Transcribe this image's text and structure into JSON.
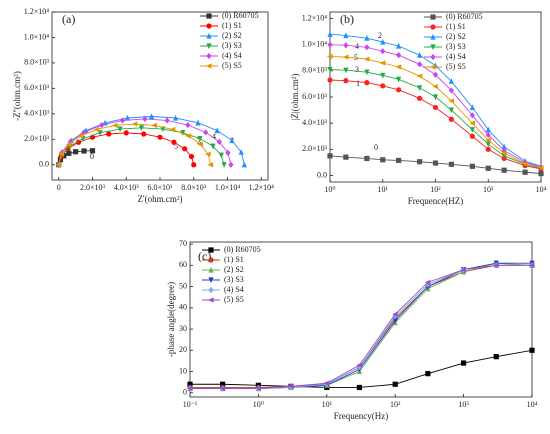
{
  "chart_data": [
    {
      "type": "line",
      "title": "(a)",
      "xlabel": "Z'(ohm.cm²)",
      "ylabel": "-Z''(ohm.cm²)",
      "xlim": [
        -400,
        12400
      ],
      "ylim": [
        -1200,
        12000
      ],
      "xticks": [
        0,
        {
          "value": 2000,
          "label": "2.0×10³"
        },
        {
          "value": 4000,
          "label": "4.0×10³"
        },
        {
          "value": 6000,
          "label": "6.0×10³"
        },
        {
          "value": 8000,
          "label": "8.0×10³"
        },
        {
          "value": 10000,
          "label": "1.0×10⁴"
        },
        {
          "value": 12000,
          "label": "1.2×10⁴"
        }
      ],
      "yticks": [
        {
          "value": 0,
          "label": "0.0"
        },
        {
          "value": 2000,
          "label": "2.0×10³"
        },
        {
          "value": 4000,
          "label": "4.0×10³"
        },
        {
          "value": 6000,
          "label": "6.0×10³"
        },
        {
          "value": 8000,
          "label": "8.0×10³"
        },
        {
          "value": 10000,
          "label": "1.0×10⁴"
        },
        {
          "value": 12000,
          "label": "1.2×10⁴"
        }
      ],
      "annotations": [
        "0",
        "5",
        "3",
        "4",
        "2"
      ],
      "series": [
        {
          "name": "(0) R60705",
          "color": "#333333",
          "marker": "square",
          "x": [
            0,
            100,
            300,
            600,
            1000,
            1500,
            2000
          ],
          "values": [
            0,
            400,
            700,
            900,
            1020,
            1080,
            1100
          ]
        },
        {
          "name": "(1) S1",
          "color": "#ff0000",
          "marker": "circle",
          "x": [
            0,
            136,
            536,
            1172,
            2000,
            2964,
            4000,
            5036,
            6000,
            6828,
            7464,
            7864,
            8000
          ],
          "values": [
            0,
            648,
            1250,
            1768,
            2165,
            2415,
            2500,
            2415,
            2165,
            1768,
            1250,
            648,
            0
          ]
        },
        {
          "name": "(2) S2",
          "color": "#1e90ff",
          "marker": "triangle-up",
          "x": [
            0,
            187,
            737,
            1612,
            2750,
            4076,
            5500,
            6924,
            8250,
            9389,
            10263,
            10813,
            11000
          ],
          "values": [
            0,
            984,
            1900,
            2687,
            3291,
            3671,
            3800,
            3671,
            3291,
            2687,
            1900,
            984,
            0
          ]
        },
        {
          "name": "(3) S3",
          "color": "#22aa44",
          "marker": "triangle-down",
          "x": [
            0,
            167,
            657,
            1436,
            2450,
            3631,
            4900,
            6169,
            7350,
            8364,
            9143,
            9633,
            9800
          ],
          "values": [
            0,
            751,
            1450,
            2050,
            2511,
            2801,
            2900,
            2801,
            2511,
            2050,
            1450,
            751,
            0
          ]
        },
        {
          "name": "(4) S4",
          "color": "#cc44ee",
          "marker": "diamond",
          "x": [
            0,
            173,
            683,
            1494,
            2550,
            3779,
            5100,
            6421,
            7650,
            8706,
            9517,
            10027,
            10200
          ],
          "values": [
            0,
            932,
            1800,
            2545,
            3118,
            3478,
            3600,
            3478,
            3118,
            2545,
            1800,
            932,
            0
          ]
        },
        {
          "name": "(5) S5",
          "color": "#e69500",
          "marker": "triangle-left",
          "x": [
            0,
            153,
            603,
            1319,
            2250,
            3335,
            4500,
            5665,
            6750,
            7682,
            8397,
            8847,
            9000
          ],
          "values": [
            0,
            829,
            1600,
            2262,
            2771,
            3091,
            3200,
            3091,
            2771,
            2262,
            1600,
            829,
            0
          ]
        }
      ]
    },
    {
      "type": "line",
      "title": "(b)",
      "xlabel": "Frequence(HZ)",
      "ylabel": "|Z|(ohm.cm²)",
      "xlog": true,
      "xlim": [
        1,
        10000
      ],
      "ylim": [
        -500,
        12500
      ],
      "xticks": [
        {
          "value": 1,
          "label": "10⁰"
        },
        {
          "value": 10,
          "label": "10¹"
        },
        {
          "value": 100,
          "label": "10²"
        },
        {
          "value": 1000,
          "label": "10³"
        },
        {
          "value": 10000,
          "label": "10⁴"
        }
      ],
      "yticks": [
        {
          "value": 0,
          "label": "0.0"
        },
        {
          "value": 2000,
          "label": "2.0×10³"
        },
        {
          "value": 4000,
          "label": "4.0×10³"
        },
        {
          "value": 6000,
          "label": "6.0×10³"
        },
        {
          "value": 8000,
          "label": "8.0×10³"
        },
        {
          "value": 10000,
          "label": "1.0×10⁴"
        },
        {
          "value": 12000,
          "label": "1.2×10⁴"
        }
      ],
      "annotations": [
        "2",
        "4",
        "5",
        "3",
        "1",
        "0"
      ],
      "x": [
        1,
        2,
        5,
        10,
        20,
        50,
        100,
        200,
        500,
        1000,
        2000,
        5000,
        10000
      ],
      "series": [
        {
          "name": "(0) R60705",
          "color": "#555555",
          "marker": "square",
          "values": [
            1500,
            1400,
            1300,
            1200,
            1150,
            1050,
            950,
            850,
            700,
            550,
            400,
            250,
            150
          ]
        },
        {
          "name": "(1) S1",
          "color": "#ff2020",
          "marker": "circle",
          "values": [
            7300,
            7250,
            7100,
            6850,
            6550,
            5900,
            5200,
            4300,
            3000,
            2000,
            1300,
            750,
            500
          ]
        },
        {
          "name": "(2) S2",
          "color": "#1e90ff",
          "marker": "triangle-up",
          "values": [
            10800,
            10700,
            10500,
            10200,
            9900,
            9200,
            8400,
            7200,
            5200,
            3500,
            2200,
            1100,
            700
          ]
        },
        {
          "name": "(3) S3",
          "color": "#22aa44",
          "marker": "triangle-down",
          "values": [
            8100,
            8050,
            7900,
            7650,
            7350,
            6700,
            6000,
            5000,
            3500,
            2400,
            1500,
            850,
            550
          ]
        },
        {
          "name": "(4) S4",
          "color": "#cc44ee",
          "marker": "diamond",
          "values": [
            10000,
            9950,
            9800,
            9500,
            9200,
            8500,
            7700,
            6500,
            4600,
            3100,
            1900,
            1000,
            650
          ]
        },
        {
          "name": "(5) S5",
          "color": "#e69500",
          "marker": "triangle-left",
          "values": [
            9100,
            9050,
            8900,
            8600,
            8300,
            7600,
            6800,
            5700,
            4000,
            2700,
            1700,
            900,
            600
          ]
        }
      ]
    },
    {
      "type": "line",
      "title": "(c)",
      "xlabel": "Frequency(Hz)",
      "ylabel": "-phase angle(degree)",
      "xlog": true,
      "xlim": [
        0.1,
        10000
      ],
      "ylim": [
        -2,
        71
      ],
      "xticks": [
        {
          "value": 0.1,
          "label": "10⁻¹"
        },
        {
          "value": 1,
          "label": "10⁰"
        },
        {
          "value": 10,
          "label": "10¹"
        },
        {
          "value": 100,
          "label": "10²"
        },
        {
          "value": 1000,
          "label": "10³"
        },
        {
          "value": 10000,
          "label": "10⁴"
        }
      ],
      "yticks": [
        0,
        10,
        20,
        30,
        40,
        50,
        60,
        70
      ],
      "annotations": [],
      "x": [
        0.1,
        0.3,
        1,
        3,
        10,
        30,
        100,
        300,
        1000,
        3000,
        10000
      ],
      "series": [
        {
          "name": "(0) R60705",
          "color": "#000000",
          "marker": "square",
          "values": [
            4,
            4,
            3.5,
            3,
            2.5,
            2.5,
            4,
            9,
            14,
            17,
            20
          ]
        },
        {
          "name": "(1) S1",
          "color": "#c0392b",
          "marker": "circle",
          "values": [
            2.5,
            2.5,
            2.5,
            3,
            4,
            12,
            35,
            50,
            57,
            60,
            60
          ]
        },
        {
          "name": "(2) S2",
          "color": "#6ab04c",
          "marker": "triangle-up",
          "values": [
            2,
            2,
            2,
            2.5,
            3.5,
            10,
            33,
            49,
            57,
            61,
            60
          ]
        },
        {
          "name": "(3) S3",
          "color": "#1f3fbf",
          "marker": "triangle-down",
          "values": [
            2,
            2,
            2,
            2.5,
            3.5,
            11,
            34,
            50,
            58,
            61,
            61
          ]
        },
        {
          "name": "(4) S4",
          "color": "#7fa7f0",
          "marker": "diamond",
          "values": [
            2,
            2,
            2,
            2.5,
            4,
            12,
            36,
            51,
            58,
            60,
            60
          ]
        },
        {
          "name": "(5) S5",
          "color": "#9b4fc9",
          "marker": "triangle-left",
          "values": [
            2,
            2,
            2,
            3,
            4.5,
            13,
            37,
            52,
            58,
            60,
            60
          ]
        }
      ]
    }
  ]
}
